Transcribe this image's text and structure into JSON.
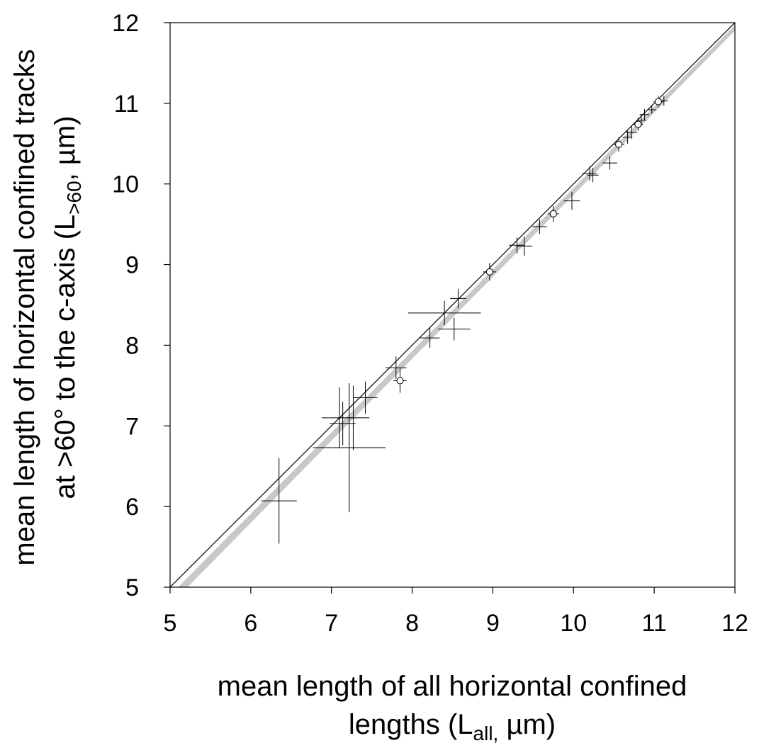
{
  "chart_data": {
    "type": "scatter",
    "xlabel": {
      "line1": "mean length of all horizontal confined",
      "line2_pre": "lengths (L",
      "line2_sub": "all,",
      "line2_post": " µm)"
    },
    "ylabel": {
      "line1": "mean length of horizontal confined tracks",
      "line2_pre": "at >60° to the c-axis (L",
      "line2_sub": ">60",
      "line2_post": ", µm)"
    },
    "xlim": [
      5,
      12
    ],
    "ylim": [
      5,
      12
    ],
    "xticks": [
      "5",
      "6",
      "7",
      "8",
      "9",
      "10",
      "11",
      "12"
    ],
    "yticks": [
      "5",
      "6",
      "7",
      "8",
      "9",
      "10",
      "11",
      "12"
    ],
    "grid": false,
    "reference_line": {
      "name": "1:1 line",
      "x": [
        5,
        12
      ],
      "y": [
        5,
        12
      ],
      "color": "#000000"
    },
    "fit_band": {
      "x": [
        5,
        12
      ],
      "y_low": [
        4.78,
        11.9
      ],
      "y_high": [
        4.9,
        11.97
      ],
      "color": "#c8c8c8"
    },
    "series": [
      {
        "marker": "cross",
        "points": [
          {
            "x": 6.35,
            "y": 6.07,
            "xerr": 0.22,
            "yerr": 0.53
          },
          {
            "x": 7.1,
            "y": 7.1,
            "xerr": 0.22,
            "yerr": 0.38
          },
          {
            "x": 7.14,
            "y": 7.03,
            "xerr": 0.16,
            "yerr": 0.27
          },
          {
            "x": 7.22,
            "y": 6.73,
            "xerr": 0.45,
            "yerr": 0.8
          },
          {
            "x": 7.27,
            "y": 7.1,
            "xerr": 0.2,
            "yerr": 0.4
          },
          {
            "x": 7.42,
            "y": 7.35,
            "xerr": 0.15,
            "yerr": 0.2
          },
          {
            "x": 7.8,
            "y": 7.72,
            "xerr": 0.13,
            "yerr": 0.14
          },
          {
            "x": 8.22,
            "y": 8.09,
            "xerr": 0.12,
            "yerr": 0.12
          },
          {
            "x": 8.4,
            "y": 8.4,
            "xerr": 0.45,
            "yerr": 0.15
          },
          {
            "x": 8.52,
            "y": 8.2,
            "xerr": 0.2,
            "yerr": 0.14
          },
          {
            "x": 8.57,
            "y": 8.58,
            "xerr": 0.1,
            "yerr": 0.12
          },
          {
            "x": 9.3,
            "y": 9.24,
            "xerr": 0.1,
            "yerr": 0.1
          },
          {
            "x": 9.39,
            "y": 9.23,
            "xerr": 0.1,
            "yerr": 0.12
          },
          {
            "x": 9.58,
            "y": 9.47,
            "xerr": 0.09,
            "yerr": 0.09
          },
          {
            "x": 9.98,
            "y": 9.79,
            "xerr": 0.1,
            "yerr": 0.11
          },
          {
            "x": 10.2,
            "y": 10.13,
            "xerr": 0.09,
            "yerr": 0.09
          },
          {
            "x": 10.24,
            "y": 10.11,
            "xerr": 0.07,
            "yerr": 0.09
          },
          {
            "x": 10.45,
            "y": 10.26,
            "xerr": 0.09,
            "yerr": 0.08
          },
          {
            "x": 10.67,
            "y": 10.58,
            "xerr": 0.06,
            "yerr": 0.08
          },
          {
            "x": 10.72,
            "y": 10.64,
            "xerr": 0.07,
            "yerr": 0.08
          },
          {
            "x": 10.84,
            "y": 10.79,
            "xerr": 0.06,
            "yerr": 0.07
          },
          {
            "x": 10.88,
            "y": 10.86,
            "xerr": 0.06,
            "yerr": 0.07
          },
          {
            "x": 10.97,
            "y": 10.92,
            "xerr": 0.05,
            "yerr": 0.05
          },
          {
            "x": 11.12,
            "y": 11.03,
            "xerr": 0.05,
            "yerr": 0.06
          }
        ]
      },
      {
        "marker": "open-circle",
        "points": [
          {
            "x": 7.85,
            "y": 7.56,
            "xerr": 0.08,
            "yerr": 0.15
          },
          {
            "x": 8.96,
            "y": 8.91,
            "xerr": 0.08,
            "yerr": 0.11
          },
          {
            "x": 9.75,
            "y": 9.63,
            "xerr": 0.07,
            "yerr": 0.1
          },
          {
            "x": 10.56,
            "y": 10.49,
            "xerr": 0.07,
            "yerr": 0.09
          },
          {
            "x": 10.8,
            "y": 10.74,
            "xerr": 0.06,
            "yerr": 0.08
          },
          {
            "x": 11.05,
            "y": 11.02,
            "xerr": 0.06,
            "yerr": 0.07
          }
        ]
      }
    ]
  }
}
